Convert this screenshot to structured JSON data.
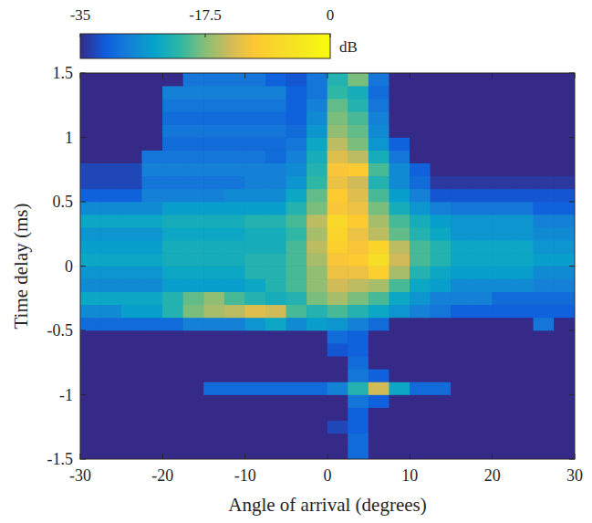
{
  "chart_data": {
    "type": "heatmap",
    "x_label": "Angle of arrival (degrees)",
    "y_label": "Time delay (ms)",
    "xlim": [
      -30,
      30
    ],
    "ylim": [
      -1.5,
      1.5
    ],
    "xticks": [
      -30,
      -20,
      -10,
      0,
      10,
      20,
      30
    ],
    "yticks": [
      -1.5,
      -1,
      -0.5,
      0,
      0.5,
      1,
      1.5
    ],
    "colorbar_label": "dB",
    "colorbar_range": [
      -35,
      0
    ],
    "colorbar_ticks": [
      -35,
      -17.5,
      0
    ],
    "x": [
      -28.75,
      -26.25,
      -23.75,
      -21.25,
      -18.75,
      -16.25,
      -13.75,
      -11.25,
      -8.75,
      -6.25,
      -3.75,
      -1.25,
      1.25,
      3.75,
      6.25,
      8.75,
      11.25,
      13.75,
      16.25,
      18.75,
      21.25,
      23.75,
      26.25,
      28.75
    ],
    "y": [
      -1.45,
      -1.35,
      -1.25,
      -1.15,
      -1.05,
      -0.95,
      -0.85,
      -0.75,
      -0.65,
      -0.55,
      -0.45,
      -0.35,
      -0.25,
      -0.15,
      -0.05,
      0.05,
      0.15,
      0.25,
      0.35,
      0.45,
      0.55,
      0.65,
      0.75,
      0.85,
      0.95,
      1.05,
      1.15,
      1.25,
      1.35,
      1.45
    ],
    "z": [
      [
        -35,
        -35,
        -35,
        -35,
        -35,
        -35,
        -35,
        -35,
        -35,
        -35,
        -35,
        -35,
        -35,
        -30,
        -35,
        -35,
        -35,
        -35,
        -35,
        -35,
        -35,
        -35,
        -35,
        -35
      ],
      [
        -35,
        -35,
        -35,
        -35,
        -35,
        -35,
        -35,
        -35,
        -35,
        -35,
        -35,
        -35,
        -35,
        -30,
        -35,
        -35,
        -35,
        -35,
        -35,
        -35,
        -35,
        -35,
        -35,
        -35
      ],
      [
        -35,
        -35,
        -35,
        -35,
        -35,
        -35,
        -35,
        -35,
        -35,
        -35,
        -35,
        -35,
        -33,
        -31,
        -35,
        -35,
        -35,
        -35,
        -35,
        -35,
        -35,
        -35,
        -35,
        -35
      ],
      [
        -35,
        -35,
        -35,
        -35,
        -35,
        -35,
        -35,
        -35,
        -35,
        -35,
        -35,
        -35,
        -35,
        -31,
        -35,
        -35,
        -35,
        -35,
        -35,
        -35,
        -35,
        -35,
        -35,
        -35
      ],
      [
        -35,
        -35,
        -35,
        -35,
        -35,
        -35,
        -35,
        -35,
        -35,
        -35,
        -35,
        -35,
        -35,
        -29,
        -31,
        -35,
        -35,
        -35,
        -35,
        -35,
        -35,
        -35,
        -35,
        -35
      ],
      [
        -35,
        -35,
        -35,
        -35,
        -35,
        -35,
        -30,
        -30,
        -30,
        -30,
        -30,
        -30,
        -28,
        -22,
        -14,
        -24,
        -30,
        -30,
        -35,
        -35,
        -35,
        -35,
        -35,
        -35
      ],
      [
        -35,
        -35,
        -35,
        -35,
        -35,
        -35,
        -35,
        -35,
        -35,
        -35,
        -35,
        -35,
        -35,
        -29,
        -31,
        -35,
        -35,
        -35,
        -35,
        -35,
        -35,
        -35,
        -35,
        -35
      ],
      [
        -35,
        -35,
        -35,
        -35,
        -35,
        -35,
        -35,
        -35,
        -35,
        -35,
        -35,
        -35,
        -35,
        -30,
        -35,
        -35,
        -35,
        -35,
        -35,
        -35,
        -35,
        -35,
        -35,
        -35
      ],
      [
        -35,
        -35,
        -35,
        -35,
        -35,
        -35,
        -35,
        -35,
        -35,
        -35,
        -35,
        -35,
        -32,
        -31,
        -35,
        -35,
        -35,
        -35,
        -35,
        -35,
        -35,
        -35,
        -35,
        -35
      ],
      [
        -35,
        -35,
        -35,
        -35,
        -35,
        -35,
        -35,
        -35,
        -35,
        -35,
        -35,
        -35,
        -30,
        -31,
        -35,
        -35,
        -35,
        -35,
        -35,
        -35,
        -35,
        -35,
        -35,
        -35
      ],
      [
        -30,
        -30,
        -30,
        -30,
        -30,
        -28,
        -28,
        -28,
        -26,
        -24,
        -27,
        -25,
        -26,
        -28,
        -30,
        -35,
        -35,
        -35,
        -35,
        -35,
        -35,
        -35,
        -29,
        -35
      ],
      [
        -27,
        -27,
        -25,
        -25,
        -22,
        -18,
        -16,
        -15,
        -13,
        -14,
        -20,
        -22,
        -20,
        -22,
        -24,
        -26,
        -28,
        -29,
        -31,
        -31,
        -31,
        -31,
        -31,
        -31
      ],
      [
        -24,
        -24,
        -24,
        -24,
        -22,
        -19,
        -17,
        -20,
        -22,
        -23,
        -22,
        -18,
        -16,
        -18,
        -20,
        -24,
        -26,
        -28,
        -28,
        -28,
        -30,
        -30,
        -30,
        -30
      ],
      [
        -27,
        -27,
        -27,
        -27,
        -25,
        -25,
        -25,
        -25,
        -24,
        -22,
        -20,
        -17,
        -14,
        -15,
        -16,
        -20,
        -24,
        -25,
        -27,
        -27,
        -27,
        -27,
        -28,
        -28
      ],
      [
        -26,
        -26,
        -26,
        -26,
        -24,
        -24,
        -24,
        -24,
        -22,
        -22,
        -20,
        -17,
        -12,
        -12,
        -9,
        -16,
        -22,
        -24,
        -25,
        -25,
        -25,
        -25,
        -27,
        -27
      ],
      [
        -24,
        -24,
        -24,
        -24,
        -23,
        -23,
        -23,
        -23,
        -22,
        -22,
        -20,
        -16,
        -11,
        -10,
        -6,
        -14,
        -20,
        -22,
        -24,
        -24,
        -24,
        -24,
        -25,
        -25
      ],
      [
        -25,
        -25,
        -25,
        -25,
        -23,
        -23,
        -23,
        -23,
        -23,
        -23,
        -20,
        -15,
        -9,
        -11,
        -8,
        -15,
        -20,
        -22,
        -24,
        -24,
        -24,
        -24,
        -26,
        -26
      ],
      [
        -26,
        -26,
        -26,
        -26,
        -24,
        -24,
        -24,
        -24,
        -23,
        -23,
        -21,
        -16,
        -8,
        -12,
        -15,
        -19,
        -22,
        -24,
        -26,
        -26,
        -26,
        -26,
        -27,
        -27
      ],
      [
        -24,
        -24,
        -24,
        -24,
        -23,
        -23,
        -23,
        -23,
        -22,
        -22,
        -20,
        -15,
        -7,
        -10,
        -16,
        -20,
        -23,
        -25,
        -26,
        -26,
        -26,
        -26,
        -28,
        -28
      ],
      [
        -27,
        -27,
        -27,
        -27,
        -25,
        -25,
        -25,
        -25,
        -25,
        -25,
        -22,
        -18,
        -11,
        -12,
        -18,
        -23,
        -26,
        -28,
        -29,
        -29,
        -29,
        -29,
        -31,
        -31
      ],
      [
        -31,
        -31,
        -31,
        -28,
        -28,
        -28,
        -28,
        -27,
        -27,
        -27,
        -24,
        -19,
        -10,
        -13,
        -20,
        -25,
        -28,
        -32,
        -32,
        -32,
        -32,
        -32,
        -32,
        -32
      ],
      [
        -33,
        -33,
        -33,
        -29,
        -29,
        -29,
        -29,
        -29,
        -28,
        -28,
        -26,
        -21,
        -12,
        -14,
        -22,
        -27,
        -30,
        -34,
        -34,
        -34,
        -34,
        -34,
        -34,
        -34
      ],
      [
        -33,
        -33,
        -33,
        -28,
        -28,
        -28,
        -28,
        -28,
        -28,
        -28,
        -27,
        -22,
        -11,
        -10,
        -20,
        -27,
        -31,
        -35,
        -35,
        -35,
        -35,
        -35,
        -35,
        -35
      ],
      [
        -35,
        -35,
        -35,
        -29,
        -29,
        -29,
        -29,
        -29,
        -29,
        -30,
        -28,
        -23,
        -13,
        -15,
        -23,
        -29,
        -35,
        -35,
        -35,
        -35,
        -35,
        -35,
        -35,
        -35
      ],
      [
        -35,
        -35,
        -35,
        -35,
        -30,
        -30,
        -30,
        -30,
        -30,
        -30,
        -29,
        -24,
        -15,
        -18,
        -26,
        -31,
        -35,
        -35,
        -35,
        -35,
        -35,
        -35,
        -35,
        -35
      ],
      [
        -35,
        -35,
        -35,
        -35,
        -29,
        -29,
        -29,
        -29,
        -29,
        -29,
        -30,
        -26,
        -17,
        -19,
        -27,
        -35,
        -35,
        -35,
        -35,
        -35,
        -35,
        -35,
        -35,
        -35
      ],
      [
        -35,
        -35,
        -35,
        -35,
        -30,
        -30,
        -30,
        -30,
        -30,
        -30,
        -31,
        -27,
        -18,
        -20,
        -28,
        -35,
        -35,
        -35,
        -35,
        -35,
        -35,
        -35,
        -35,
        -35
      ],
      [
        -35,
        -35,
        -35,
        -35,
        -29,
        -29,
        -29,
        -29,
        -29,
        -29,
        -31,
        -28,
        -19,
        -22,
        -29,
        -35,
        -35,
        -35,
        -35,
        -35,
        -35,
        -35,
        -35,
        -35
      ],
      [
        -35,
        -35,
        -35,
        -35,
        -28,
        -28,
        -28,
        -28,
        -28,
        -28,
        -31,
        -29,
        -21,
        -23,
        -30,
        -35,
        -35,
        -35,
        -35,
        -35,
        -35,
        -35,
        -35,
        -35
      ],
      [
        -35,
        -35,
        -35,
        -35,
        -35,
        -29,
        -29,
        -29,
        -29,
        -31,
        -32,
        -29,
        -22,
        -18,
        -29,
        -35,
        -35,
        -35,
        -35,
        -35,
        -35,
        -35,
        -35,
        -35
      ]
    ]
  }
}
